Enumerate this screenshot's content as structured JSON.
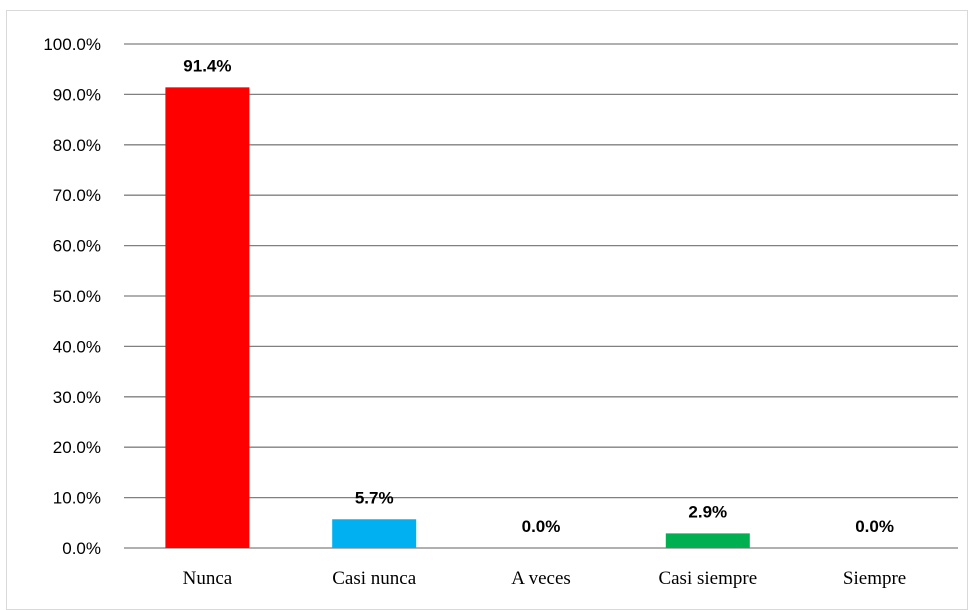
{
  "chart_data": {
    "type": "bar",
    "title": "",
    "xlabel": "",
    "ylabel": "",
    "categories": [
      "Nunca",
      "Casi nunca",
      "A veces",
      "Casi siempre",
      "Siempre"
    ],
    "values": [
      91.4,
      5.7,
      0.0,
      2.9,
      0.0
    ],
    "data_labels": [
      "91.4%",
      "5.7%",
      "0.0%",
      "2.9%",
      "0.0%"
    ],
    "bar_colors": [
      "#ff0000",
      "#00b0f0",
      "#7f7f7f",
      "#00b050",
      "#7f7f7f"
    ],
    "ylim": [
      0,
      100
    ],
    "yticks": [
      0,
      10,
      20,
      30,
      40,
      50,
      60,
      70,
      80,
      90,
      100
    ],
    "ytick_labels": [
      "0.0%",
      "10.0%",
      "20.0%",
      "30.0%",
      "40.0%",
      "50.0%",
      "60.0%",
      "70.0%",
      "80.0%",
      "90.0%",
      "100.0%"
    ],
    "grid": true,
    "legend": "none",
    "gridline_color": "#808080"
  }
}
